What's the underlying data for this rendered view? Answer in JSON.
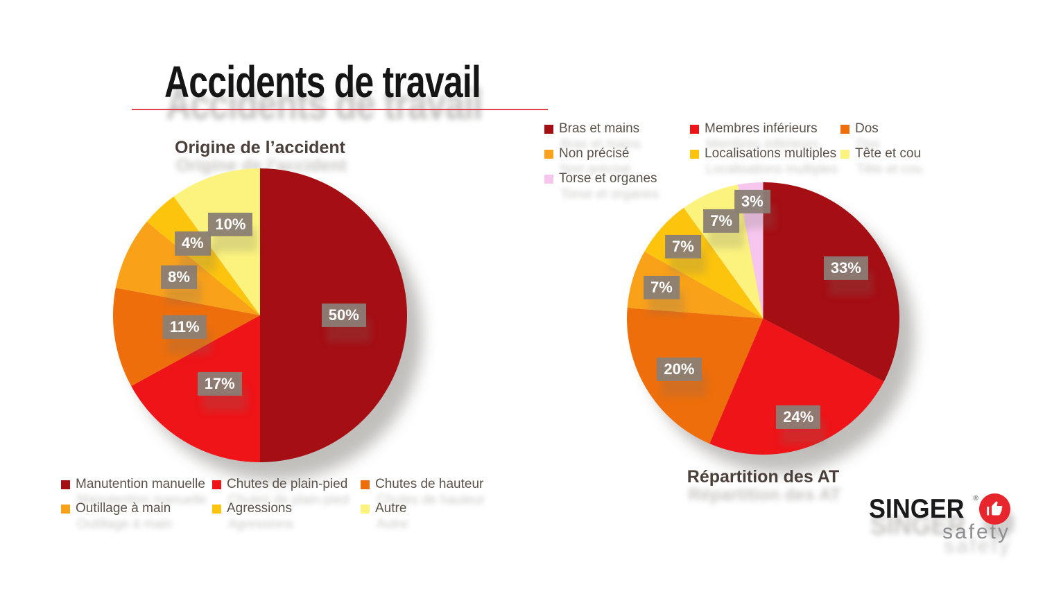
{
  "slide": {
    "title": "Accidents de travail",
    "background_color": "#FFFFFF",
    "underline_color": "#E2404D"
  },
  "label_style": {
    "background": "#8A7E75",
    "text_color": "#FFFFFF"
  },
  "chart_data": [
    {
      "type": "pie",
      "title": "Origine de l’accident",
      "title_position": "above",
      "legend_position": "below",
      "value_suffix": "%",
      "start_angle_deg": 0,
      "direction": "clockwise",
      "slices": [
        {
          "label": "Manutention manuelle",
          "value": 50,
          "color": "#A50E13",
          "label_r": 0.57
        },
        {
          "label": "Chutes de plain-pied",
          "value": 17,
          "color": "#EE1418",
          "label_r": 0.54
        },
        {
          "label": "Chutes de hauteur",
          "value": 11,
          "color": "#EE6E0B",
          "label_r": 0.52
        },
        {
          "label": "Outillage à main",
          "value": 8,
          "color": "#FAA11A",
          "label_r": 0.61
        },
        {
          "label": "Agressions",
          "value": 4,
          "color": "#FCC40D",
          "label_r": 0.67
        },
        {
          "label": "Autre",
          "value": 10,
          "color": "#FBF37E",
          "label_r": 0.65
        }
      ]
    },
    {
      "type": "pie",
      "title": "Répartition des AT",
      "title_position": "below",
      "legend_position": "above",
      "value_suffix": "%",
      "start_angle_deg": 0,
      "direction": "clockwise",
      "slices": [
        {
          "label": "Bras et mains",
          "value": 33,
          "color": "#A50E13",
          "label_r": 0.71
        },
        {
          "label": "Membres inférieurs",
          "value": 24,
          "color": "#EE1418",
          "label_r": 0.77
        },
        {
          "label": "Dos",
          "value": 20,
          "color": "#EE6E0B",
          "label_r": 0.72
        },
        {
          "label": "Non précisé",
          "value": 7,
          "color": "#FAA11A",
          "label_r": 0.78
        },
        {
          "label": "Localisations multiples",
          "value": 7,
          "color": "#FCC40D",
          "label_r": 0.79
        },
        {
          "label": "Tête et cou",
          "value": 7,
          "color": "#FBF37E",
          "label_r": 0.78
        },
        {
          "label": "Torse et organes",
          "value": 3,
          "color": "#F7C6EE",
          "label_r": 0.86
        }
      ]
    }
  ],
  "logo": {
    "brand": "SINGER",
    "registered": "®",
    "tagline": "safety",
    "badge_color": "#E8242C",
    "thumb_icon": "thumbs-up-icon"
  }
}
